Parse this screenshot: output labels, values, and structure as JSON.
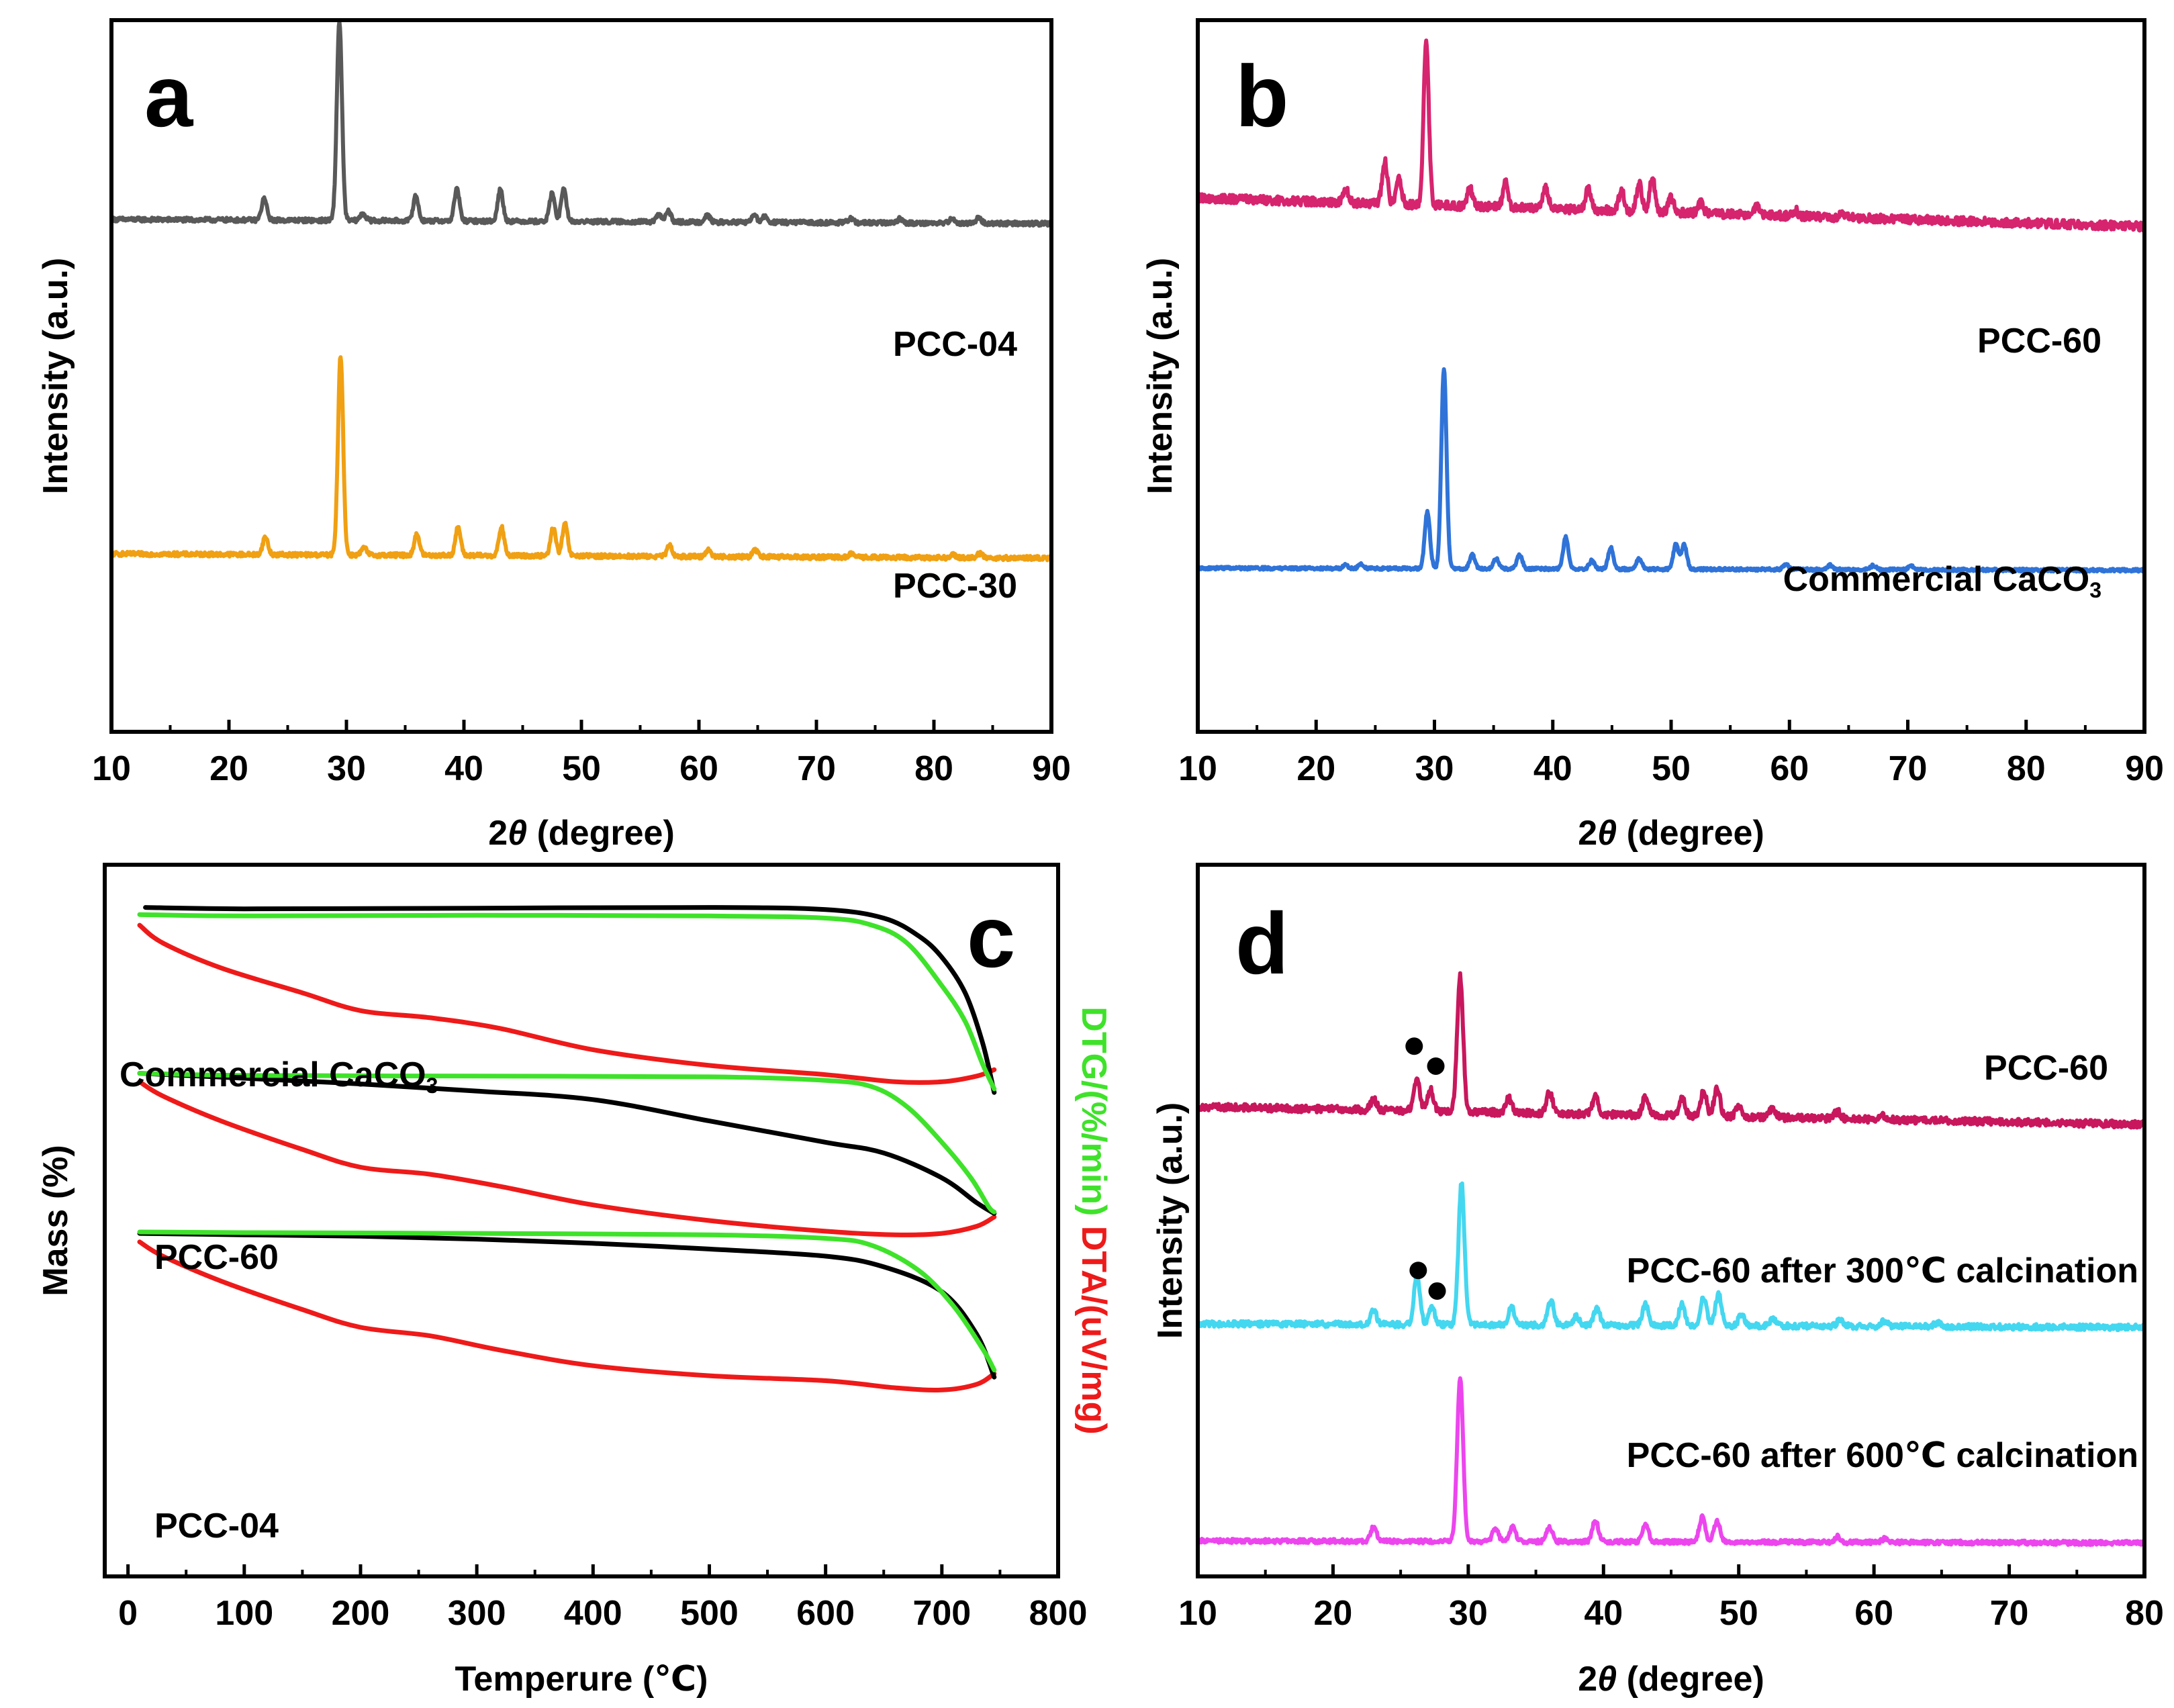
{
  "figure": {
    "panels": [
      "a",
      "b",
      "c",
      "d"
    ]
  },
  "chart_data": [
    {
      "id": "a",
      "type": "line",
      "panel_label": "a",
      "xlabel_prefix": "2",
      "xlabel_theta": "θ",
      "xlabel_suffix": " (degree)",
      "ylabel": "Intensity (a.u.)",
      "xlim": [
        10,
        90
      ],
      "xticks": [
        10,
        20,
        30,
        40,
        50,
        60,
        70,
        80,
        90
      ],
      "series": [
        {
          "name": "PCC-04",
          "color": "#595959",
          "baseline": 0.72,
          "tilt": -0.006,
          "noise": 0.003,
          "peaks": [
            [
              23.0,
              0.03
            ],
            [
              29.4,
              0.28
            ],
            [
              31.4,
              0.01
            ],
            [
              35.9,
              0.035
            ],
            [
              39.4,
              0.045
            ],
            [
              43.1,
              0.045
            ],
            [
              47.5,
              0.04
            ],
            [
              48.5,
              0.045
            ],
            [
              56.6,
              0.01
            ],
            [
              57.4,
              0.015
            ],
            [
              60.7,
              0.01
            ],
            [
              64.7,
              0.01
            ],
            [
              65.6,
              0.008
            ],
            [
              72.9,
              0.006
            ],
            [
              77.1,
              0.006
            ],
            [
              81.5,
              0.006
            ],
            [
              83.8,
              0.008
            ]
          ]
        },
        {
          "name": "PCC-30",
          "color": "#F0A013",
          "baseline": 0.25,
          "tilt": -0.006,
          "noise": 0.003,
          "peaks": [
            [
              23.1,
              0.025
            ],
            [
              29.5,
              0.28
            ],
            [
              31.5,
              0.01
            ],
            [
              36.0,
              0.03
            ],
            [
              39.5,
              0.04
            ],
            [
              43.2,
              0.04
            ],
            [
              47.6,
              0.04
            ],
            [
              48.6,
              0.045
            ],
            [
              57.5,
              0.015
            ],
            [
              60.8,
              0.01
            ],
            [
              64.8,
              0.01
            ],
            [
              73.0,
              0.005
            ],
            [
              81.6,
              0.005
            ],
            [
              83.9,
              0.006
            ]
          ]
        }
      ]
    },
    {
      "id": "b",
      "type": "line",
      "panel_label": "b",
      "xlabel_prefix": "2",
      "xlabel_theta": "θ",
      "xlabel_suffix": " (degree)",
      "ylabel": "Intensity (a.u.)",
      "xlim": [
        10,
        90
      ],
      "xticks": [
        10,
        20,
        30,
        40,
        50,
        60,
        70,
        80,
        90
      ],
      "series": [
        {
          "name": "PCC-60",
          "color": "#D6246E",
          "baseline": 0.75,
          "tilt": -0.04,
          "noise": 0.006,
          "peaks": [
            [
              22.5,
              0.02
            ],
            [
              25.8,
              0.06
            ],
            [
              27.0,
              0.035
            ],
            [
              29.3,
              0.23
            ],
            [
              33.0,
              0.025
            ],
            [
              36.0,
              0.035
            ],
            [
              39.4,
              0.03
            ],
            [
              43.0,
              0.03
            ],
            [
              45.8,
              0.03
            ],
            [
              47.3,
              0.04
            ],
            [
              48.4,
              0.05
            ],
            [
              50.0,
              0.02
            ],
            [
              52.5,
              0.015
            ],
            [
              57.2,
              0.012
            ],
            [
              60.5,
              0.008
            ],
            [
              64.5,
              0.006
            ]
          ]
        },
        {
          "name": "Commercial CaCO",
          "name_sub": "3",
          "color": "#2F73D8",
          "baseline": 0.23,
          "tilt": -0.003,
          "noise": 0.002,
          "peaks": [
            [
              22.5,
              0.005
            ],
            [
              23.8,
              0.007
            ],
            [
              29.4,
              0.08
            ],
            [
              30.8,
              0.28
            ],
            [
              33.2,
              0.02
            ],
            [
              35.2,
              0.015
            ],
            [
              37.2,
              0.02
            ],
            [
              41.1,
              0.045
            ],
            [
              43.3,
              0.012
            ],
            [
              44.9,
              0.03
            ],
            [
              47.3,
              0.015
            ],
            [
              50.4,
              0.035
            ],
            [
              51.1,
              0.035
            ],
            [
              59.7,
              0.008
            ],
            [
              63.4,
              0.006
            ],
            [
              67.1,
              0.006
            ],
            [
              70.3,
              0.005
            ]
          ]
        }
      ]
    },
    {
      "id": "c",
      "type": "line",
      "panel_label": "c",
      "xlabel": "Temperure (℃)",
      "ylabel_left": "Mass (%)",
      "ylabel_right_dtg": "DTG/(%/min) ",
      "ylabel_right_dta": "DTA/(uV/mg)",
      "xlim": [
        -20,
        800
      ],
      "xticks": [
        0,
        100,
        200,
        300,
        400,
        500,
        600,
        700,
        800
      ],
      "groups": [
        {
          "name": "Commercial CaCO",
          "name_sub": "3",
          "mass": [
            [
              15,
              0.94
            ],
            [
              100,
              0.938
            ],
            [
              300,
              0.939
            ],
            [
              500,
              0.94
            ],
            [
              600,
              0.937
            ],
            [
              650,
              0.925
            ],
            [
              680,
              0.9
            ],
            [
              700,
              0.87
            ],
            [
              720,
              0.82
            ],
            [
              735,
              0.75
            ],
            [
              745,
              0.68
            ]
          ],
          "dtg": [
            [
              10,
              0.93
            ],
            [
              100,
              0.928
            ],
            [
              300,
              0.929
            ],
            [
              500,
              0.928
            ],
            [
              600,
              0.925
            ],
            [
              640,
              0.915
            ],
            [
              670,
              0.89
            ],
            [
              700,
              0.83
            ],
            [
              720,
              0.78
            ],
            [
              735,
              0.72
            ],
            [
              745,
              0.685
            ]
          ],
          "dta": [
            [
              10,
              0.915
            ],
            [
              30,
              0.89
            ],
            [
              80,
              0.855
            ],
            [
              150,
              0.82
            ],
            [
              200,
              0.795
            ],
            [
              260,
              0.785
            ],
            [
              320,
              0.77
            ],
            [
              400,
              0.74
            ],
            [
              500,
              0.718
            ],
            [
              600,
              0.705
            ],
            [
              660,
              0.695
            ],
            [
              700,
              0.695
            ],
            [
              730,
              0.703
            ],
            [
              745,
              0.712
            ]
          ]
        },
        {
          "name": "PCC-60",
          "mass": [
            [
              10,
              0.707
            ],
            [
              100,
              0.7
            ],
            [
              200,
              0.692
            ],
            [
              300,
              0.682
            ],
            [
              400,
              0.67
            ],
            [
              500,
              0.64
            ],
            [
              600,
              0.61
            ],
            [
              650,
              0.595
            ],
            [
              700,
              0.56
            ],
            [
              730,
              0.525
            ],
            [
              745,
              0.51
            ]
          ],
          "dtg": [
            [
              10,
              0.707
            ],
            [
              100,
              0.704
            ],
            [
              300,
              0.703
            ],
            [
              500,
              0.702
            ],
            [
              600,
              0.697
            ],
            [
              640,
              0.688
            ],
            [
              670,
              0.66
            ],
            [
              700,
              0.61
            ],
            [
              725,
              0.56
            ],
            [
              740,
              0.52
            ],
            [
              745,
              0.512
            ]
          ],
          "dta": [
            [
              10,
              0.695
            ],
            [
              30,
              0.675
            ],
            [
              80,
              0.64
            ],
            [
              150,
              0.6
            ],
            [
              200,
              0.575
            ],
            [
              260,
              0.565
            ],
            [
              320,
              0.548
            ],
            [
              400,
              0.522
            ],
            [
              500,
              0.5
            ],
            [
              600,
              0.485
            ],
            [
              660,
              0.48
            ],
            [
              700,
              0.482
            ],
            [
              730,
              0.492
            ],
            [
              745,
              0.505
            ]
          ]
        },
        {
          "name": "PCC-04",
          "mass": [
            [
              10,
              0.482
            ],
            [
              100,
              0.48
            ],
            [
              200,
              0.478
            ],
            [
              300,
              0.474
            ],
            [
              400,
              0.468
            ],
            [
              500,
              0.46
            ],
            [
              600,
              0.45
            ],
            [
              650,
              0.435
            ],
            [
              700,
              0.4
            ],
            [
              730,
              0.34
            ],
            [
              745,
              0.28
            ]
          ],
          "dtg": [
            [
              10,
              0.484
            ],
            [
              100,
              0.483
            ],
            [
              300,
              0.482
            ],
            [
              500,
              0.48
            ],
            [
              600,
              0.475
            ],
            [
              640,
              0.465
            ],
            [
              680,
              0.43
            ],
            [
              710,
              0.38
            ],
            [
              735,
              0.32
            ],
            [
              745,
              0.29
            ]
          ],
          "dta": [
            [
              10,
              0.47
            ],
            [
              30,
              0.45
            ],
            [
              80,
              0.415
            ],
            [
              150,
              0.375
            ],
            [
              200,
              0.35
            ],
            [
              260,
              0.338
            ],
            [
              320,
              0.318
            ],
            [
              400,
              0.296
            ],
            [
              500,
              0.282
            ],
            [
              600,
              0.275
            ],
            [
              660,
              0.265
            ],
            [
              700,
              0.262
            ],
            [
              730,
              0.27
            ],
            [
              745,
              0.285
            ]
          ]
        }
      ],
      "colors": {
        "mass": "#000000",
        "dtg": "#3FE22A",
        "dta": "#EE1A1A"
      }
    },
    {
      "id": "d",
      "type": "line",
      "panel_label": "d",
      "xlabel_prefix": "2",
      "xlabel_theta": "θ",
      "xlabel_suffix": " (degree)",
      "ylabel": "Intensity (a.u.)",
      "xlim": [
        10,
        80
      ],
      "xticks": [
        10,
        20,
        30,
        40,
        50,
        60,
        70,
        80
      ],
      "marker_symbol": "●",
      "series": [
        {
          "name": "PCC-60",
          "color": "#C8175D",
          "baseline": 0.66,
          "tilt": -0.025,
          "noise": 0.005,
          "peaks": [
            [
              23.0,
              0.015
            ],
            [
              26.2,
              0.045
            ],
            [
              27.2,
              0.03
            ],
            [
              29.4,
              0.19
            ],
            [
              33.0,
              0.02
            ],
            [
              36.0,
              0.03
            ],
            [
              39.4,
              0.025
            ],
            [
              43.1,
              0.025
            ],
            [
              45.8,
              0.025
            ],
            [
              47.4,
              0.035
            ],
            [
              48.4,
              0.04
            ],
            [
              50.0,
              0.015
            ],
            [
              52.5,
              0.012
            ],
            [
              57.3,
              0.01
            ],
            [
              60.7,
              0.006
            ]
          ],
          "markers": [
            [
              26.0,
              0.745
            ],
            [
              27.6,
              0.717
            ]
          ]
        },
        {
          "name": "PCC-60 after 300℃ calcination",
          "color": "#44D7F0",
          "baseline": 0.355,
          "tilt": -0.005,
          "noise": 0.004,
          "peaks": [
            [
              23.0,
              0.02
            ],
            [
              26.2,
              0.07
            ],
            [
              27.3,
              0.025
            ],
            [
              29.5,
              0.2
            ],
            [
              33.2,
              0.025
            ],
            [
              36.1,
              0.035
            ],
            [
              38.0,
              0.012
            ],
            [
              39.5,
              0.025
            ],
            [
              43.1,
              0.03
            ],
            [
              45.8,
              0.03
            ],
            [
              47.4,
              0.04
            ],
            [
              48.5,
              0.045
            ],
            [
              50.2,
              0.015
            ],
            [
              52.5,
              0.01
            ],
            [
              57.5,
              0.01
            ],
            [
              60.8,
              0.008
            ],
            [
              64.7,
              0.006
            ]
          ],
          "markers": [
            [
              26.3,
              0.43
            ],
            [
              27.7,
              0.401
            ]
          ]
        },
        {
          "name": "PCC-60 after 600℃ calcination",
          "color": "#EC45EE",
          "baseline": 0.05,
          "tilt": -0.003,
          "noise": 0.003,
          "peaks": [
            [
              23.0,
              0.02
            ],
            [
              29.4,
              0.23
            ],
            [
              32.0,
              0.018
            ],
            [
              33.3,
              0.02
            ],
            [
              36.0,
              0.02
            ],
            [
              39.4,
              0.03
            ],
            [
              43.1,
              0.025
            ],
            [
              47.3,
              0.035
            ],
            [
              48.4,
              0.03
            ],
            [
              57.3,
              0.008
            ],
            [
              60.8,
              0.005
            ]
          ],
          "markers": []
        }
      ]
    }
  ]
}
